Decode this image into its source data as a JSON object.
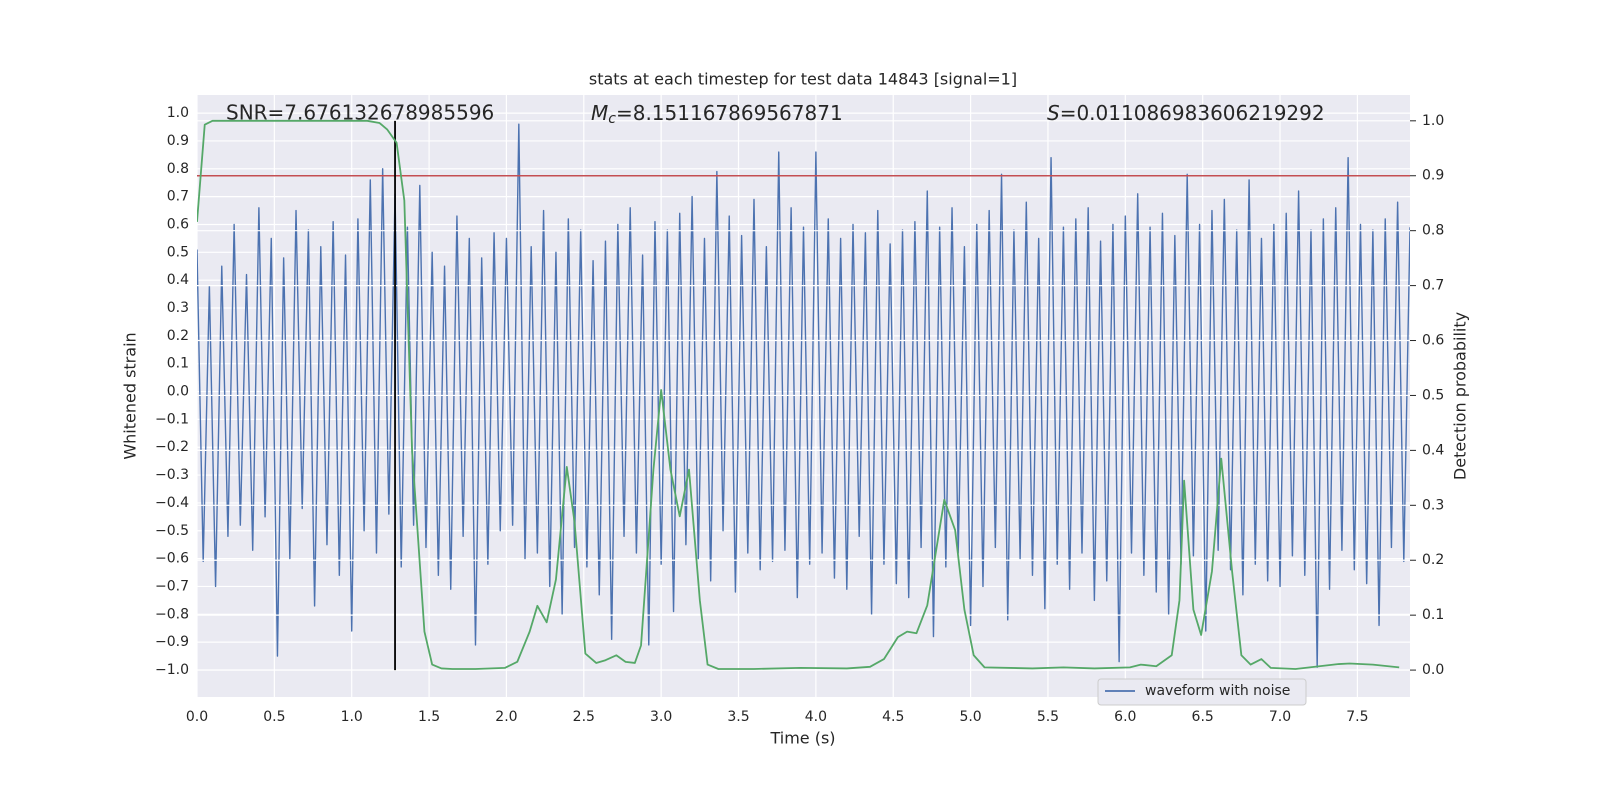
{
  "chart_data": {
    "type": "line",
    "title": "stats at each timestep for test data 14843 [signal=1]",
    "x_label": "Time (s)",
    "y_label": "Whitened strain",
    "y2_label": "Detection probability",
    "grid": true,
    "legend_position": "lower right",
    "xlim": [
      0,
      7.84
    ],
    "ylim": [
      -1.097,
      1.065
    ],
    "y2lim": [
      -0.049,
      1.047
    ],
    "xticks": [
      {
        "value": 0,
        "label": "0.0"
      },
      0.5,
      {
        "value": 1,
        "label": "1.0"
      },
      1.5,
      {
        "value": 2,
        "label": "2.0"
      },
      2.5,
      {
        "value": 3,
        "label": "3.0"
      },
      3.5,
      {
        "value": 4,
        "label": "4.0"
      },
      4.5,
      {
        "value": 5,
        "label": "5.0"
      },
      5.5,
      {
        "value": 6,
        "label": "6.0"
      },
      6.5,
      {
        "value": 7,
        "label": "7.0"
      },
      7.5
    ],
    "yticks": [
      {
        "value": -1,
        "label": "−1.0"
      },
      {
        "value": -0.9,
        "label": "−0.9"
      },
      {
        "value": -0.8,
        "label": "−0.8"
      },
      {
        "value": -0.7,
        "label": "−0.7"
      },
      {
        "value": -0.6,
        "label": "−0.6"
      },
      {
        "value": -0.5,
        "label": "−0.5"
      },
      {
        "value": -0.4,
        "label": "−0.4"
      },
      {
        "value": -0.3,
        "label": "−0.3"
      },
      {
        "value": -0.2,
        "label": "−0.2"
      },
      {
        "value": -0.1,
        "label": "−0.1"
      },
      {
        "value": 0,
        "label": "0.0"
      },
      0.1,
      0.2,
      0.3,
      0.4,
      0.5,
      0.6,
      0.7,
      0.8,
      0.9,
      {
        "value": 1,
        "label": "1.0"
      }
    ],
    "y2ticks": [
      {
        "value": 0,
        "label": "0.0"
      },
      0.1,
      0.2,
      0.3,
      0.4,
      0.5,
      0.6,
      0.7,
      0.8,
      0.9,
      {
        "value": 1,
        "label": "1.0"
      }
    ],
    "annotations": [
      {
        "text": "SNR=7.676132678985596"
      },
      {
        "symbol": "M",
        "subscript": "c",
        "text": "=8.151167869567871"
      },
      {
        "symbol": "S",
        "text": "=0.011086983606219292"
      }
    ],
    "threshold": {
      "y": 0.9,
      "axis": "y2",
      "color": "#c44e52"
    },
    "vline": {
      "x": 1.28,
      "ymin": 0,
      "ymax": 1,
      "axis": "y2",
      "color": "#000000"
    },
    "series": [
      {
        "name": "waveform with noise",
        "color": "#4c72b0",
        "x": [
          0,
          0.04,
          0.08,
          0.12,
          0.16,
          0.2,
          0.24,
          0.28,
          0.32,
          0.36,
          0.4,
          0.44,
          0.48,
          0.52,
          0.56,
          0.6,
          0.64,
          0.68,
          0.72,
          0.76,
          0.8,
          0.84,
          0.88,
          0.92,
          0.96,
          1,
          1.04,
          1.08,
          1.12,
          1.16,
          1.2,
          1.24,
          1.28,
          1.32,
          1.36,
          1.4,
          1.44,
          1.48,
          1.52,
          1.56,
          1.6,
          1.64,
          1.68,
          1.72,
          1.76,
          1.8,
          1.84,
          1.88,
          1.92,
          1.96,
          2,
          2.04,
          2.08,
          2.12,
          2.16,
          2.2,
          2.24,
          2.28,
          2.32,
          2.36,
          2.4,
          2.44,
          2.48,
          2.52,
          2.56,
          2.6,
          2.64,
          2.68,
          2.72,
          2.76,
          2.8,
          2.84,
          2.88,
          2.92,
          2.96,
          3,
          3.04,
          3.08,
          3.12,
          3.16,
          3.2,
          3.24,
          3.28,
          3.32,
          3.36,
          3.4,
          3.44,
          3.48,
          3.52,
          3.56,
          3.6,
          3.64,
          3.68,
          3.72,
          3.76,
          3.8,
          3.84,
          3.88,
          3.92,
          3.96,
          4,
          4.04,
          4.08,
          4.12,
          4.16,
          4.2,
          4.24,
          4.28,
          4.32,
          4.36,
          4.4,
          4.44,
          4.48,
          4.52,
          4.56,
          4.6,
          4.64,
          4.68,
          4.72,
          4.76,
          4.8,
          4.84,
          4.88,
          4.92,
          4.96,
          5,
          5.04,
          5.08,
          5.12,
          5.16,
          5.2,
          5.24,
          5.28,
          5.32,
          5.36,
          5.4,
          5.44,
          5.48,
          5.52,
          5.56,
          5.6,
          5.64,
          5.68,
          5.72,
          5.76,
          5.8,
          5.84,
          5.88,
          5.92,
          5.96,
          6,
          6.04,
          6.08,
          6.12,
          6.16,
          6.2,
          6.24,
          6.28,
          6.32,
          6.36,
          6.4,
          6.44,
          6.48,
          6.52,
          6.56,
          6.6,
          6.64,
          6.68,
          6.72,
          6.76,
          6.8,
          6.84,
          6.88,
          6.92,
          6.96,
          7,
          7.04,
          7.08,
          7.12,
          7.16,
          7.2,
          7.24,
          7.28,
          7.32,
          7.36,
          7.4,
          7.44,
          7.48,
          7.52,
          7.56,
          7.6,
          7.64,
          7.68,
          7.72,
          7.76,
          7.8,
          7.84
        ],
        "values": [
          0.51,
          -0.61,
          0.38,
          -0.7,
          0.45,
          -0.52,
          0.6,
          -0.48,
          0.42,
          -0.57,
          0.66,
          -0.45,
          0.55,
          -0.95,
          0.48,
          -0.6,
          0.65,
          -0.42,
          0.58,
          -0.77,
          0.52,
          -0.55,
          0.61,
          -0.66,
          0.49,
          -0.86,
          0.62,
          -0.5,
          0.76,
          -0.58,
          0.8,
          -0.44,
          0.71,
          -0.63,
          0.59,
          -0.48,
          0.74,
          -0.56,
          0.5,
          -0.66,
          0.45,
          -0.71,
          0.63,
          -0.52,
          0.55,
          -0.91,
          0.48,
          -0.62,
          0.57,
          -0.5,
          0.55,
          -0.48,
          0.96,
          -0.6,
          0.52,
          -0.58,
          0.65,
          -0.7,
          0.5,
          -0.8,
          0.62,
          -0.56,
          0.58,
          -0.63,
          0.47,
          -0.73,
          0.54,
          -0.89,
          0.6,
          -0.52,
          0.66,
          -0.58,
          0.49,
          -0.91,
          0.61,
          -0.62,
          0.58,
          -0.79,
          0.64,
          -0.55,
          0.7,
          -0.6,
          0.55,
          -0.68,
          0.79,
          -0.5,
          0.63,
          -0.72,
          0.56,
          -0.58,
          0.69,
          -0.64,
          0.52,
          -0.61,
          0.86,
          -0.57,
          0.66,
          -0.74,
          0.59,
          -0.62,
          0.86,
          -0.58,
          0.62,
          -0.67,
          0.55,
          -0.71,
          0.6,
          -0.52,
          0.57,
          -0.8,
          0.65,
          -0.62,
          0.53,
          -0.69,
          0.58,
          -0.74,
          0.61,
          -0.56,
          0.72,
          -0.88,
          0.59,
          -0.63,
          0.66,
          -0.58,
          0.52,
          -0.84,
          0.6,
          -0.7,
          0.65,
          -0.56,
          0.78,
          -0.82,
          0.58,
          -0.6,
          0.68,
          -0.66,
          0.55,
          -0.78,
          0.84,
          -0.62,
          0.59,
          -0.71,
          0.62,
          -0.58,
          0.66,
          -0.75,
          0.54,
          -0.68,
          0.6,
          -0.97,
          0.63,
          -0.58,
          0.71,
          -0.66,
          0.59,
          -0.72,
          0.64,
          -0.8,
          0.56,
          -0.62,
          0.78,
          -0.59,
          0.6,
          -0.86,
          0.65,
          -0.57,
          0.69,
          -0.64,
          0.58,
          -0.73,
          0.76,
          -0.62,
          0.55,
          -0.68,
          0.6,
          -0.7,
          0.64,
          -0.59,
          0.72,
          -0.66,
          0.58,
          -0.99,
          0.62,
          -0.71,
          0.66,
          -0.57,
          0.84,
          -0.64,
          0.6,
          -0.69,
          0.58,
          -0.84,
          0.62,
          -0.56,
          0.68,
          -0.61,
          0.59
        ]
      },
      {
        "color": "#55a868",
        "axis": "y2",
        "x": [
          0,
          0.05,
          0.1,
          0.16,
          0.3,
          0.5,
          0.8,
          1.1,
          1.18,
          1.23,
          1.29,
          1.34,
          1.39,
          1.47,
          1.52,
          1.58,
          1.65,
          1.8,
          1.99,
          2.07,
          2.15,
          2.2,
          2.26,
          2.32,
          2.39,
          2.44,
          2.51,
          2.58,
          2.64,
          2.71,
          2.77,
          2.83,
          2.87,
          2.95,
          3,
          3.06,
          3.12,
          3.18,
          3.25,
          3.3,
          3.37,
          3.6,
          3.9,
          4.2,
          4.35,
          4.44,
          4.53,
          4.59,
          4.65,
          4.72,
          4.83,
          4.9,
          4.96,
          5.02,
          5.09,
          5.4,
          5.6,
          5.8,
          6.03,
          6.1,
          6.2,
          6.3,
          6.35,
          6.38,
          6.44,
          6.49,
          6.56,
          6.62,
          6.69,
          6.75,
          6.81,
          6.88,
          6.94,
          7.1,
          7.38,
          7.45,
          7.6,
          7.77
        ],
        "values": [
          0.816,
          0.993,
          1,
          1,
          1,
          1,
          1,
          1,
          0.996,
          0.984,
          0.96,
          0.855,
          0.4,
          0.07,
          0.01,
          0.003,
          0.002,
          0.002,
          0.004,
          0.015,
          0.07,
          0.117,
          0.087,
          0.165,
          0.37,
          0.27,
          0.03,
          0.013,
          0.018,
          0.027,
          0.015,
          0.013,
          0.045,
          0.365,
          0.51,
          0.365,
          0.28,
          0.365,
          0.127,
          0.01,
          0.002,
          0.002,
          0.004,
          0.003,
          0.006,
          0.02,
          0.06,
          0.07,
          0.067,
          0.118,
          0.31,
          0.255,
          0.11,
          0.027,
          0.005,
          0.003,
          0.005,
          0.003,
          0.005,
          0.01,
          0.007,
          0.027,
          0.127,
          0.345,
          0.11,
          0.064,
          0.18,
          0.385,
          0.18,
          0.027,
          0.01,
          0.02,
          0.004,
          0.002,
          0.011,
          0.012,
          0.01,
          0.005
        ]
      }
    ]
  }
}
